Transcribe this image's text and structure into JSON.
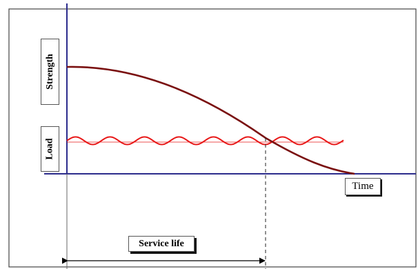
{
  "diagram": {
    "labels": {
      "strength": "Strength",
      "load": "Load",
      "time": "Time",
      "service_life": "Service life"
    },
    "colors": {
      "strength_curve": "#7a1010",
      "load_curve": "#e81818",
      "axes": "#2b2b8c",
      "frame": "#444444",
      "dashed_guide": "#222222",
      "arrow": "#000000"
    }
  }
}
